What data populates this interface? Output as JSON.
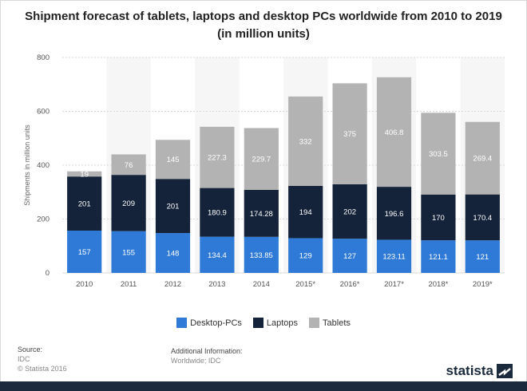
{
  "chart_data": {
    "type": "bar",
    "stacked": true,
    "title": "Shipment forecast of tablets, laptops and desktop PCs worldwide from 2010 to 2019 (in million units)",
    "ylabel": "Shipments in million units",
    "xlabel": "",
    "ylim": [
      0,
      800
    ],
    "yticks": [
      "0",
      "200",
      "400",
      "600",
      "800"
    ],
    "categories": [
      "2010",
      "2011",
      "2012",
      "2013",
      "2014",
      "2015*",
      "2016*",
      "2017*",
      "2018*",
      "2019*"
    ],
    "series": [
      {
        "name": "Desktop-PCs",
        "color": "#2f7ad6",
        "values": [
          157,
          155,
          148,
          134.4,
          133.85,
          129,
          127,
          123.11,
          121.1,
          121
        ]
      },
      {
        "name": "Laptops",
        "color": "#14233a",
        "values": [
          201,
          209,
          201,
          180.9,
          174.28,
          194,
          202,
          196.6,
          170,
          170.4
        ]
      },
      {
        "name": "Tablets",
        "color": "#b3b3b3",
        "values": [
          19,
          76,
          145,
          227.3,
          229.7,
          332,
          375,
          406.8,
          303.5,
          269.4
        ]
      }
    ],
    "data_labels": [
      [
        "157",
        "155",
        "148",
        "134.4",
        "133.85",
        "129",
        "127",
        "123.11",
        "121.1",
        "121"
      ],
      [
        "201",
        "209",
        "201",
        "180.9",
        "174.28",
        "194",
        "202",
        "196.6",
        "170",
        "170.4"
      ],
      [
        "19",
        "76",
        "145",
        "227.3",
        "229.7",
        "332",
        "375",
        "406.8",
        "303.5",
        "269.4"
      ]
    ],
    "grid": true,
    "legend_position": "bottom"
  },
  "source": {
    "label": "Source:",
    "name": "IDC",
    "copyright": "© Statista 2016"
  },
  "additional_info": {
    "label": "Additional Information:",
    "text": "Worldwide; IDC"
  },
  "brand": {
    "name": "statista",
    "footer_color": "#1b2a3d"
  }
}
